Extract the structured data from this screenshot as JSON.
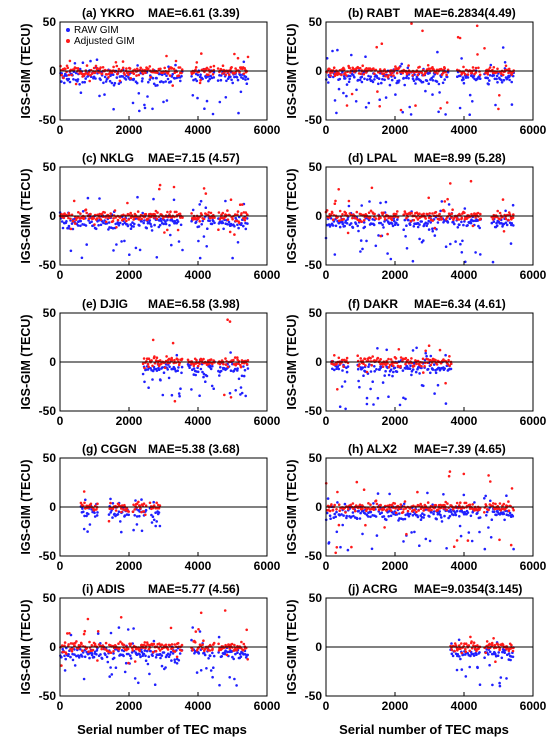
{
  "figure": {
    "ylabel": "IGS-GIM (TECU)",
    "xlabel": "Serial number of TEC maps",
    "legend": {
      "placement": "top-left of panel (a)",
      "entries": [
        {
          "label": "RAW GIM",
          "color": "#2020ff"
        },
        {
          "label": "Adjusted GIM",
          "color": "#ff1a1a"
        }
      ]
    },
    "colors": {
      "raw": "#2020ff",
      "adjusted": "#ff1a1a",
      "zero_line": "#000000"
    }
  },
  "chart_data": [
    {
      "type": "scatter",
      "panel": "a",
      "title": "(a) YKRO",
      "mae": "MAE=6.61 (3.39)",
      "xlim": [
        0,
        6000
      ],
      "ylim": [
        -50,
        50
      ],
      "xticks": [
        "0",
        "2000",
        "4000",
        "6000"
      ],
      "yticks": [
        "50",
        "0",
        "-50"
      ],
      "segments": [
        [
          0,
          3550
        ],
        [
          3800,
          4480
        ],
        [
          4580,
          5450
        ]
      ],
      "raw_range": [
        -45,
        12
      ],
      "adjusted_range": [
        -18,
        18
      ],
      "series": [
        {
          "name": "RAW GIM"
        },
        {
          "name": "Adjusted GIM"
        }
      ]
    },
    {
      "type": "scatter",
      "panel": "b",
      "title": "(b) RABT",
      "mae": "MAE=6.2834(4.49)",
      "xlim": [
        0,
        6000
      ],
      "ylim": [
        -50,
        50
      ],
      "xticks": [
        "0",
        "2000",
        "4000",
        "6000"
      ],
      "yticks": [
        "50",
        "0",
        "-50"
      ],
      "segments": [
        [
          0,
          3550
        ],
        [
          3800,
          4480
        ],
        [
          4580,
          5450
        ]
      ],
      "raw_range": [
        -45,
        25
      ],
      "adjusted_range": [
        -40,
        50
      ],
      "series": [
        {
          "name": "RAW GIM"
        },
        {
          "name": "Adjusted GIM"
        }
      ]
    },
    {
      "type": "scatter",
      "panel": "c",
      "title": "(c) NKLG",
      "mae": "MAE=7.15 (4.57)",
      "xlim": [
        0,
        6000
      ],
      "ylim": [
        -50,
        50
      ],
      "xticks": [
        "0",
        "2000",
        "4000",
        "6000"
      ],
      "yticks": [
        "50",
        "0",
        "-50"
      ],
      "segments": [
        [
          0,
          3550
        ],
        [
          3800,
          4480
        ],
        [
          4580,
          5450
        ]
      ],
      "raw_range": [
        -45,
        20
      ],
      "adjusted_range": [
        -20,
        35
      ],
      "series": [
        {
          "name": "RAW GIM"
        },
        {
          "name": "Adjusted GIM"
        }
      ]
    },
    {
      "type": "scatter",
      "panel": "d",
      "title": "(d) LPAL",
      "mae": "MAE=8.99 (5.28)",
      "xlim": [
        0,
        6000
      ],
      "ylim": [
        -50,
        50
      ],
      "xticks": [
        "0",
        "2000",
        "4000",
        "6000"
      ],
      "yticks": [
        "50",
        "0",
        "-50"
      ],
      "segments": [
        [
          0,
          1450
        ],
        [
          1500,
          2100
        ],
        [
          2250,
          4500
        ],
        [
          4800,
          5450
        ]
      ],
      "raw_range": [
        -48,
        15
      ],
      "adjusted_range": [
        -25,
        40
      ],
      "series": [
        {
          "name": "RAW GIM"
        },
        {
          "name": "Adjusted GIM"
        }
      ]
    },
    {
      "type": "scatter",
      "panel": "e",
      "title": "(e) DJIG",
      "mae": "MAE=6.58 (3.98)",
      "xlim": [
        0,
        6000
      ],
      "ylim": [
        -50,
        50
      ],
      "xticks": [
        "0",
        "2000",
        "4000",
        "6000"
      ],
      "yticks": [
        "50",
        "0",
        "-50"
      ],
      "segments": [
        [
          2400,
          3550
        ],
        [
          3700,
          4480
        ],
        [
          4580,
          5450
        ]
      ],
      "raw_range": [
        -35,
        15
      ],
      "adjusted_range": [
        -40,
        48
      ],
      "series": [
        {
          "name": "RAW GIM"
        },
        {
          "name": "Adjusted GIM"
        }
      ]
    },
    {
      "type": "scatter",
      "panel": "f",
      "title": "(f) DAKR",
      "mae": "MAE=6.34 (4.61)",
      "xlim": [
        0,
        6000
      ],
      "ylim": [
        -50,
        50
      ],
      "xticks": [
        "0",
        "2000",
        "4000",
        "6000"
      ],
      "yticks": [
        "50",
        "0",
        "-50"
      ],
      "segments": [
        [
          150,
          650
        ],
        [
          900,
          3650
        ]
      ],
      "raw_range": [
        -48,
        15
      ],
      "adjusted_range": [
        -30,
        20
      ],
      "series": [
        {
          "name": "RAW GIM"
        },
        {
          "name": "Adjusted GIM"
        }
      ]
    },
    {
      "type": "scatter",
      "panel": "g",
      "title": "(g) CGGN",
      "mae": "MAE=5.38 (3.68)",
      "xlim": [
        0,
        6000
      ],
      "ylim": [
        -50,
        50
      ],
      "xticks": [
        "0",
        "2000",
        "4000",
        "6000"
      ],
      "yticks": [
        "50",
        "0",
        "-50"
      ],
      "segments": [
        [
          600,
          1100
        ],
        [
          1400,
          2000
        ],
        [
          2100,
          2500
        ],
        [
          2600,
          2900
        ]
      ],
      "raw_range": [
        -30,
        10
      ],
      "adjusted_range": [
        -20,
        35
      ],
      "series": [
        {
          "name": "RAW GIM"
        },
        {
          "name": "Adjusted GIM"
        }
      ]
    },
    {
      "type": "scatter",
      "panel": "h",
      "title": "(h) ALX2",
      "mae": "MAE=7.39 (4.65)",
      "xlim": [
        0,
        6000
      ],
      "ylim": [
        -50,
        50
      ],
      "xticks": [
        "0",
        "2000",
        "4000",
        "6000"
      ],
      "yticks": [
        "50",
        "0",
        "-50"
      ],
      "segments": [
        [
          0,
          4480
        ],
        [
          4580,
          5450
        ]
      ],
      "raw_range": [
        -45,
        15
      ],
      "adjusted_range": [
        -48,
        40
      ],
      "series": [
        {
          "name": "RAW GIM"
        },
        {
          "name": "Adjusted GIM"
        }
      ]
    },
    {
      "type": "scatter",
      "panel": "i",
      "title": "(i) ADIS",
      "mae": "MAE=5.77 (4.56)",
      "xlim": [
        0,
        6000
      ],
      "ylim": [
        -50,
        50
      ],
      "xticks": [
        "0",
        "2000",
        "4000",
        "6000"
      ],
      "yticks": [
        "50",
        "0",
        "-50"
      ],
      "segments": [
        [
          0,
          3550
        ],
        [
          3800,
          4480
        ],
        [
          4580,
          5450
        ]
      ],
      "raw_range": [
        -40,
        20
      ],
      "adjusted_range": [
        -20,
        42
      ],
      "series": [
        {
          "name": "RAW GIM"
        },
        {
          "name": "Adjusted GIM"
        }
      ]
    },
    {
      "type": "scatter",
      "panel": "j",
      "title": "(j) ACRG",
      "mae": "MAE=9.0354(3.145)",
      "xlim": [
        0,
        6000
      ],
      "ylim": [
        -50,
        50
      ],
      "xticks": [
        "0",
        "2000",
        "4000",
        "6000"
      ],
      "yticks": [
        "50",
        "0",
        "-50"
      ],
      "segments": [
        [
          3600,
          4480
        ],
        [
          4580,
          5450
        ]
      ],
      "raw_range": [
        -40,
        10
      ],
      "adjusted_range": [
        -15,
        22
      ],
      "series": [
        {
          "name": "RAW GIM"
        },
        {
          "name": "Adjusted GIM"
        }
      ]
    }
  ]
}
